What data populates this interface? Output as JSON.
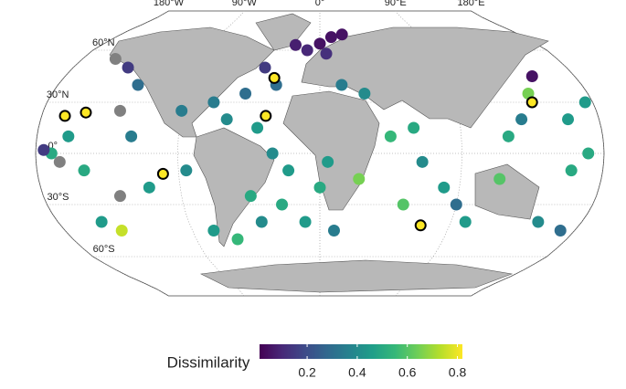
{
  "chart_data": {
    "type": "map",
    "lon_labels": [
      {
        "value": -180,
        "label": "180°W"
      },
      {
        "value": -90,
        "label": "90°W"
      },
      {
        "value": 0,
        "label": "0°"
      },
      {
        "value": 90,
        "label": "90°E"
      },
      {
        "value": 180,
        "label": "180°E"
      }
    ],
    "lat_labels": [
      {
        "value": 60,
        "label": "60°N"
      },
      {
        "value": 30,
        "label": "30°N"
      },
      {
        "value": 0,
        "label": "0°"
      },
      {
        "value": -30,
        "label": "30°S"
      },
      {
        "value": -60,
        "label": "60°S"
      }
    ],
    "colorbar": {
      "title": "Dissimilarity",
      "lim": [
        0.01,
        0.82
      ],
      "ticks": [
        0.2,
        0.4,
        0.6,
        0.8
      ]
    },
    "missing_color": "#808080",
    "points": [
      {
        "lon": 0,
        "lat": 65,
        "value": 0.05
      },
      {
        "lon": 10,
        "lat": 70,
        "value": 0.05
      },
      {
        "lon": -20,
        "lat": 64,
        "value": 0.08
      },
      {
        "lon": 20,
        "lat": 72,
        "value": 0.05
      },
      {
        "lon": -10,
        "lat": 60,
        "value": 0.1
      },
      {
        "lon": 5,
        "lat": 58,
        "value": 0.12
      },
      {
        "lon": -40,
        "lat": 50,
        "value": 0.15
      },
      {
        "lon": -30,
        "lat": 40,
        "value": 0.3
      },
      {
        "lon": -50,
        "lat": 35,
        "value": 0.3
      },
      {
        "lon": -70,
        "lat": 30,
        "value": 0.35
      },
      {
        "lon": -60,
        "lat": 20,
        "value": 0.4
      },
      {
        "lon": -40,
        "lat": 15,
        "value": 0.45
      },
      {
        "lon": -30,
        "lat": 0,
        "value": 0.4
      },
      {
        "lon": -20,
        "lat": -10,
        "value": 0.45
      },
      {
        "lon": -25,
        "lat": -30,
        "value": 0.5
      },
      {
        "lon": -40,
        "lat": -40,
        "value": 0.4
      },
      {
        "lon": -10,
        "lat": -40,
        "value": 0.45
      },
      {
        "lon": 10,
        "lat": -45,
        "value": 0.35
      },
      {
        "lon": 0,
        "lat": -20,
        "value": 0.5
      },
      {
        "lon": 5,
        "lat": -5,
        "value": 0.45
      },
      {
        "lon": 15,
        "lat": 40,
        "value": 0.35
      },
      {
        "lon": 30,
        "lat": 35,
        "value": 0.4
      },
      {
        "lon": 60,
        "lat": 15,
        "value": 0.5
      },
      {
        "lon": 65,
        "lat": -5,
        "value": 0.4
      },
      {
        "lon": 80,
        "lat": -20,
        "value": 0.45
      },
      {
        "lon": 90,
        "lat": -30,
        "value": 0.3
      },
      {
        "lon": 100,
        "lat": -40,
        "value": 0.45
      },
      {
        "lon": 55,
        "lat": -30,
        "value": 0.6
      },
      {
        "lon": 120,
        "lat": 10,
        "value": 0.5
      },
      {
        "lon": 130,
        "lat": 20,
        "value": 0.35
      },
      {
        "lon": 140,
        "lat": 35,
        "value": 0.65
      },
      {
        "lon": 150,
        "lat": 45,
        "value": 0.05
      },
      {
        "lon": 160,
        "lat": 20,
        "value": 0.45
      },
      {
        "lon": 170,
        "lat": 0,
        "value": 0.5
      },
      {
        "lon": -170,
        "lat": 0,
        "value": 0.5
      },
      {
        "lon": 160,
        "lat": -10,
        "value": 0.5
      },
      {
        "lon": 150,
        "lat": -40,
        "value": 0.4
      },
      {
        "lon": 170,
        "lat": -45,
        "value": 0.3
      },
      {
        "lon": -150,
        "lat": -10,
        "value": 0.5
      },
      {
        "lon": -120,
        "lat": 10,
        "value": 0.35
      },
      {
        "lon": -110,
        "lat": -20,
        "value": 0.45
      },
      {
        "lon": -150,
        "lat": -40,
        "value": 0.45
      },
      {
        "lon": -140,
        "lat": -45,
        "value": 0.75
      },
      {
        "lon": -160,
        "lat": 10,
        "value": 0.45
      },
      {
        "lon": -125,
        "lat": 40,
        "value": 0.3
      },
      {
        "lon": -140,
        "lat": 50,
        "value": 0.15
      },
      {
        "lon": -175,
        "lat": 2,
        "value": 0.15
      },
      {
        "lon": -90,
        "lat": 25,
        "value": 0.35
      },
      {
        "lon": -85,
        "lat": -10,
        "value": 0.4
      },
      {
        "lon": -75,
        "lat": -45,
        "value": 0.45
      },
      {
        "lon": -60,
        "lat": -50,
        "value": 0.55
      },
      {
        "lon": -45,
        "lat": -25,
        "value": 0.5
      },
      {
        "lon": 115,
        "lat": -15,
        "value": 0.6
      },
      {
        "lon": 175,
        "lat": 30,
        "value": 0.45
      },
      {
        "lon": 25,
        "lat": -15,
        "value": 0.65
      },
      {
        "lon": 45,
        "lat": 10,
        "value": 0.55
      },
      {
        "lon": -155,
        "lat": 55,
        "value": null
      },
      {
        "lon": -130,
        "lat": 25,
        "value": null
      },
      {
        "lon": -165,
        "lat": -5,
        "value": null
      },
      {
        "lon": -130,
        "lat": -25,
        "value": null
      },
      {
        "lon": -165,
        "lat": 22,
        "value": 0.8,
        "outline": true
      },
      {
        "lon": -152,
        "lat": 24,
        "value": 0.8,
        "outline": true
      },
      {
        "lon": -100,
        "lat": -12,
        "value": 0.7,
        "outline": true
      },
      {
        "lon": -32,
        "lat": 44,
        "value": 0.8,
        "outline": true
      },
      {
        "lon": -35,
        "lat": 22,
        "value": 0.8,
        "outline": true
      },
      {
        "lon": 70,
        "lat": -42,
        "value": 0.8,
        "outline": true
      },
      {
        "lon": 140,
        "lat": 30,
        "value": 0.8,
        "outline": true
      }
    ]
  }
}
